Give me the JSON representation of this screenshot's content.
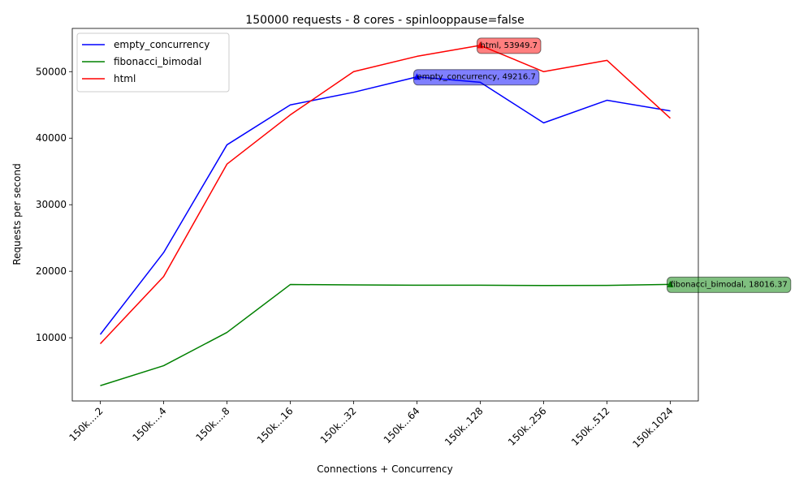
{
  "chart_data": {
    "type": "line",
    "title": "150000 requests - 8 cores - spinlooppause=false",
    "xlabel": "Connections + Concurrency",
    "ylabel": "Requests per second",
    "categories": [
      "150k....2",
      "150k....4",
      "150k....8",
      "150k...16",
      "150k...32",
      "150k...64",
      "150k..128",
      "150k..256",
      "150k..512",
      "150k.1024"
    ],
    "ylim": [
      500,
      56500
    ],
    "yticks": [
      10000,
      20000,
      30000,
      40000,
      50000
    ],
    "grid": false,
    "legend_position": "upper-left",
    "series": [
      {
        "name": "empty_concurrency",
        "color": "#0000ff",
        "values": [
          10500,
          22800,
          39000,
          45000,
          46900,
          49216.7,
          48400,
          42300,
          45700,
          44100
        ]
      },
      {
        "name": "fibonacci_bimodal",
        "color": "#008000",
        "values": [
          2800,
          5800,
          10800,
          18000,
          17950,
          17900,
          17900,
          17850,
          17870,
          18016.37
        ]
      },
      {
        "name": "html",
        "color": "#ff0000",
        "values": [
          9100,
          19200,
          36100,
          43500,
          50000,
          52300,
          53949.7,
          50000,
          51700,
          43000
        ]
      }
    ],
    "annotations": [
      {
        "series": "html",
        "index": 6,
        "text": "html, 53949.7",
        "color": "#ff0000"
      },
      {
        "series": "empty_concurrency",
        "index": 5,
        "text": "empty_concurrency, 49216.7",
        "color": "#0000ff"
      },
      {
        "series": "fibonacci_bimodal",
        "index": 9,
        "text": "fibonacci_bimodal, 18016.37",
        "color": "#008000"
      }
    ]
  }
}
